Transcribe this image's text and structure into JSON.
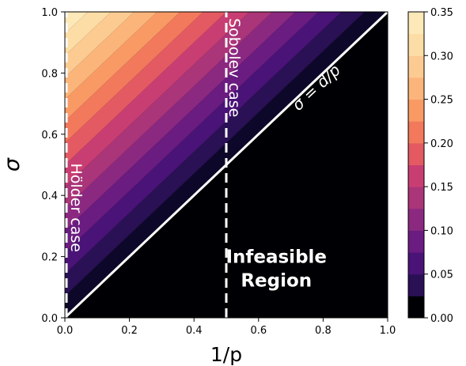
{
  "chart_data": {
    "type": "heatmap",
    "subtype": "filled-contour",
    "xlabel": "1/p",
    "ylabel": "σ",
    "xlim": [
      0.0,
      1.0
    ],
    "ylim": [
      0.0,
      1.0
    ],
    "xticks": [
      "0.0",
      "0.2",
      "0.4",
      "0.6",
      "0.8",
      "1.0"
    ],
    "yticks": [
      "0.0",
      "0.2",
      "0.4",
      "0.6",
      "0.8",
      "1.0"
    ],
    "colorbar": {
      "ticks": [
        "0.00",
        "0.05",
        "0.10",
        "0.15",
        "0.20",
        "0.25",
        "0.30",
        "0.35"
      ],
      "levels": [
        0.0,
        0.025,
        0.05,
        0.075,
        0.1,
        0.125,
        0.15,
        0.175,
        0.2,
        0.225,
        0.25,
        0.275,
        0.3,
        0.325,
        0.35
      ],
      "colors": [
        "#000004",
        "#140e36",
        "#3b0f70",
        "#641a80",
        "#8c2981",
        "#b73779",
        "#de4968",
        "#f7705c",
        "#fe9f6d",
        "#fecf92",
        "#fcfdbf",
        "#fbdca4",
        "#fce3b2"
      ]
    },
    "boundary_line": {
      "label": "σ = d/p",
      "x": [
        0.0,
        1.0
      ],
      "y": [
        0.0,
        1.0
      ]
    },
    "reference_lines": [
      {
        "label": "Sobolev case",
        "x": 0.5,
        "style": "dashed"
      },
      {
        "label": "Hölder case",
        "x": 0.0,
        "style": "dashed"
      }
    ],
    "region_label": [
      "Infeasible",
      "Region"
    ],
    "value_function": "sigma - 1/p, scaled to max 0.35 at top-left"
  }
}
